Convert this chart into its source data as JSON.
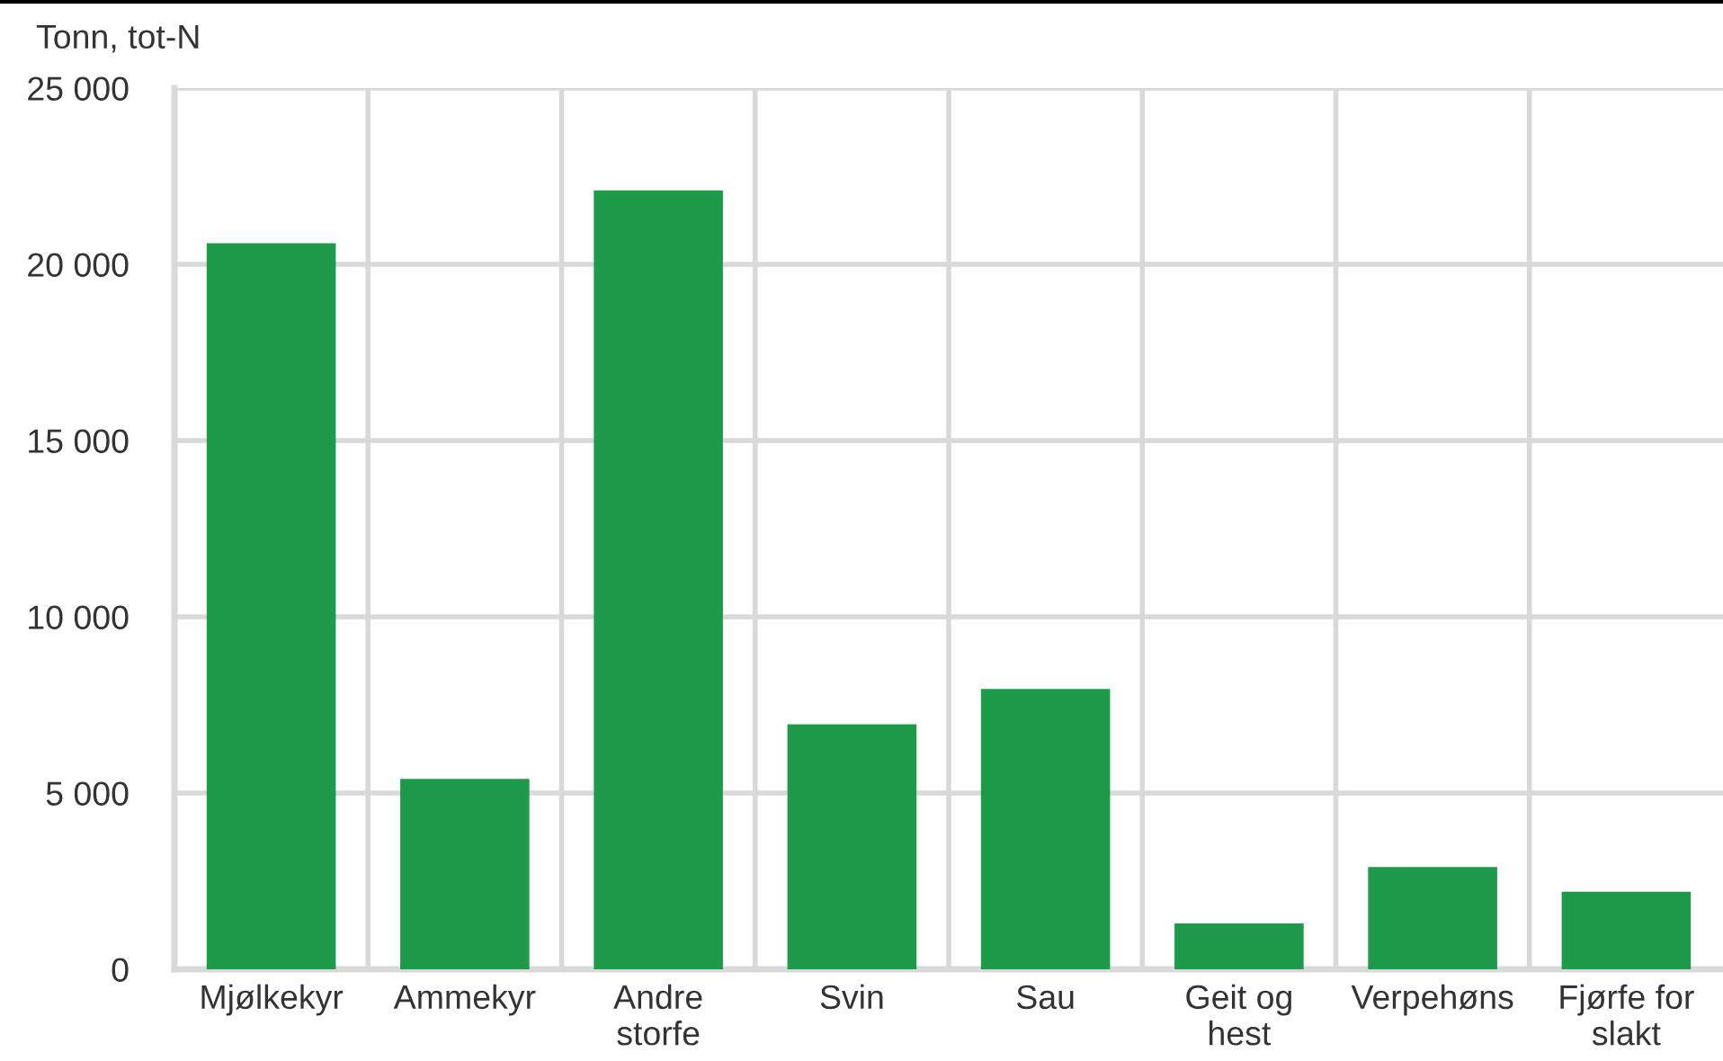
{
  "chart_data": {
    "type": "bar",
    "ylabel": "Tonn, tot-N",
    "categories": [
      "Mjølkekyr",
      "Ammekyr",
      "Andre\nstorfe",
      "Svin",
      "Sau",
      "Geit og\nhest",
      "Verpehøns",
      "Fjørfe for\nslakt"
    ],
    "values": [
      20600,
      5400,
      22100,
      6950,
      7950,
      1300,
      2900,
      2200
    ],
    "color": "#1e9b4a",
    "ylim": [
      0,
      25000
    ],
    "yticks": [
      0,
      {
        "value": 5000,
        "label": "5 000"
      },
      {
        "value": 10000,
        "label": "10 000"
      },
      {
        "value": 15000,
        "label": "15 000"
      },
      {
        "value": 20000,
        "label": "20 000"
      },
      {
        "value": 25000,
        "label": "25 000"
      }
    ],
    "grid": true,
    "legend": false
  }
}
